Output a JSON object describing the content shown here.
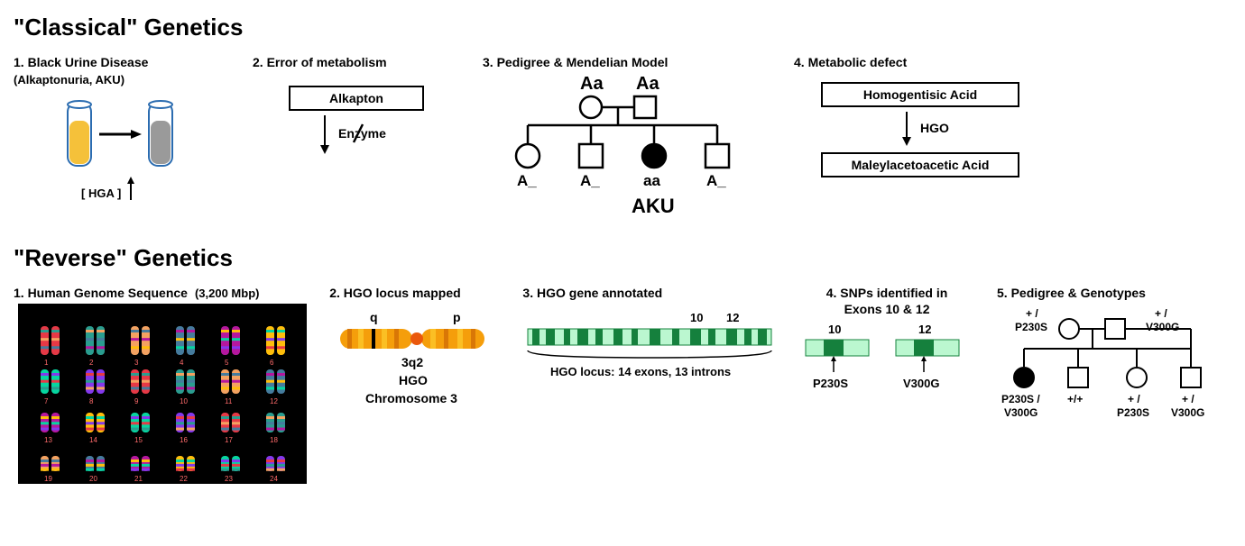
{
  "style": {
    "bg": "#ffffff",
    "text_color": "#000000",
    "section_title_fontsize": 26,
    "panel_title_fontsize": 14,
    "label_fontsize": 13
  },
  "classical": {
    "title": "\"Classical\" Genetics",
    "panels": {
      "p1": {
        "title": "1. Black Urine Disease",
        "subtitle": "(Alkaptonuria, AKU)",
        "tube_left_color": "#f5c13a",
        "tube_right_color": "#9a9a9a",
        "tube_outline": "#2b6cb0",
        "hga_label": "[ HGA ]"
      },
      "p2": {
        "title": "2. Error of metabolism",
        "box_label": "Alkapton",
        "enzyme_label": "Enzyme"
      },
      "p3": {
        "title": "3. Pedigree & Mendelian Model",
        "parent_left": "Aa",
        "parent_right": "Aa",
        "child_underscore": "A_",
        "child_affected": "aa",
        "aku_label": "AKU"
      },
      "p4": {
        "title": "4. Metabolic defect",
        "top_box": "Homogentisic Acid",
        "enzyme": "HGO",
        "bottom_box": "Maleylacetoacetic Acid"
      }
    }
  },
  "reverse": {
    "title": "\"Reverse\" Genetics",
    "panels": {
      "p1": {
        "title": "1. Human Genome Sequence",
        "subtitle_right": "(3,200 Mbp)",
        "karyotype_bg": "#000000",
        "chrom_colors": [
          "#e63946",
          "#2a9d8f",
          "#f4a261",
          "#457b9d",
          "#b5179e",
          "#ffbe0b",
          "#06d6a0",
          "#8338ec"
        ]
      },
      "p2": {
        "title": "2. HGO locus mapped",
        "q_label": "q",
        "p_label": "p",
        "band_label": "3q2",
        "gene_label": "HGO",
        "chrom_label": "Chromosome 3",
        "chrom_color_a": "#f59e0b",
        "chrom_color_b": "#fbbf24",
        "centromere_color": "#ea580c"
      },
      "p3": {
        "title": "3. HGO gene  annotated",
        "exon10": "10",
        "exon12": "12",
        "caption": "HGO locus: 14 exons, 13 introns",
        "exon_color": "#15803d",
        "intron_color": "#bbf7d0"
      },
      "p4": {
        "title": "4. SNPs identified in",
        "title2": "Exons 10 & 12",
        "exon10": "10",
        "exon12": "12",
        "snp1": "P230S",
        "snp2": "V300G",
        "exon_color": "#15803d",
        "intron_color": "#bbf7d0"
      },
      "p5": {
        "title": "5. Pedigree & Genotypes",
        "father_top": "+ /",
        "father_bot": "P230S",
        "mother_top": "+ /",
        "mother_bot": "V300G",
        "c1_top": "P230S /",
        "c1_bot": "V300G",
        "c2": "+/+",
        "c3_top": "+ /",
        "c3_bot": "P230S",
        "c4_top": "+ /",
        "c4_bot": "V300G"
      }
    }
  }
}
